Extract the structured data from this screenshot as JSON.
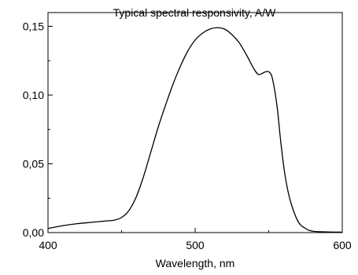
{
  "chart_data": {
    "type": "line",
    "title": "Typical spectral responsivity, A/W",
    "xlabel": "Wavelength, nm",
    "ylabel": "",
    "xlim": [
      400,
      600
    ],
    "ylim": [
      0,
      0.16
    ],
    "x_ticks": [
      {
        "value": 400,
        "label": "400"
      },
      {
        "value": 500,
        "label": "500"
      },
      {
        "value": 600,
        "label": "600"
      }
    ],
    "y_ticks": [
      {
        "value": 0.0,
        "label": "0,00"
      },
      {
        "value": 0.05,
        "label": "0,05"
      },
      {
        "value": 0.1,
        "label": "0,10"
      },
      {
        "value": 0.15,
        "label": "0,15"
      }
    ],
    "grid": false,
    "legend": "none",
    "series": [
      {
        "color": "#000000",
        "x": [
          400,
          410,
          420,
          430,
          440,
          445,
          450,
          455,
          460,
          465,
          470,
          475,
          480,
          485,
          490,
          495,
          500,
          505,
          510,
          515,
          520,
          525,
          530,
          535,
          540,
          543,
          546,
          548,
          550,
          552,
          554,
          556,
          558,
          560,
          562,
          565,
          570,
          575,
          580,
          590,
          600
        ],
        "y": [
          0.003,
          0.005,
          0.0065,
          0.0075,
          0.0085,
          0.009,
          0.011,
          0.016,
          0.026,
          0.041,
          0.059,
          0.077,
          0.093,
          0.108,
          0.121,
          0.132,
          0.14,
          0.145,
          0.148,
          0.149,
          0.148,
          0.144,
          0.138,
          0.129,
          0.119,
          0.115,
          0.116,
          0.117,
          0.117,
          0.114,
          0.104,
          0.089,
          0.068,
          0.05,
          0.036,
          0.022,
          0.008,
          0.003,
          0.001,
          0.0005,
          0.0003
        ]
      }
    ]
  }
}
